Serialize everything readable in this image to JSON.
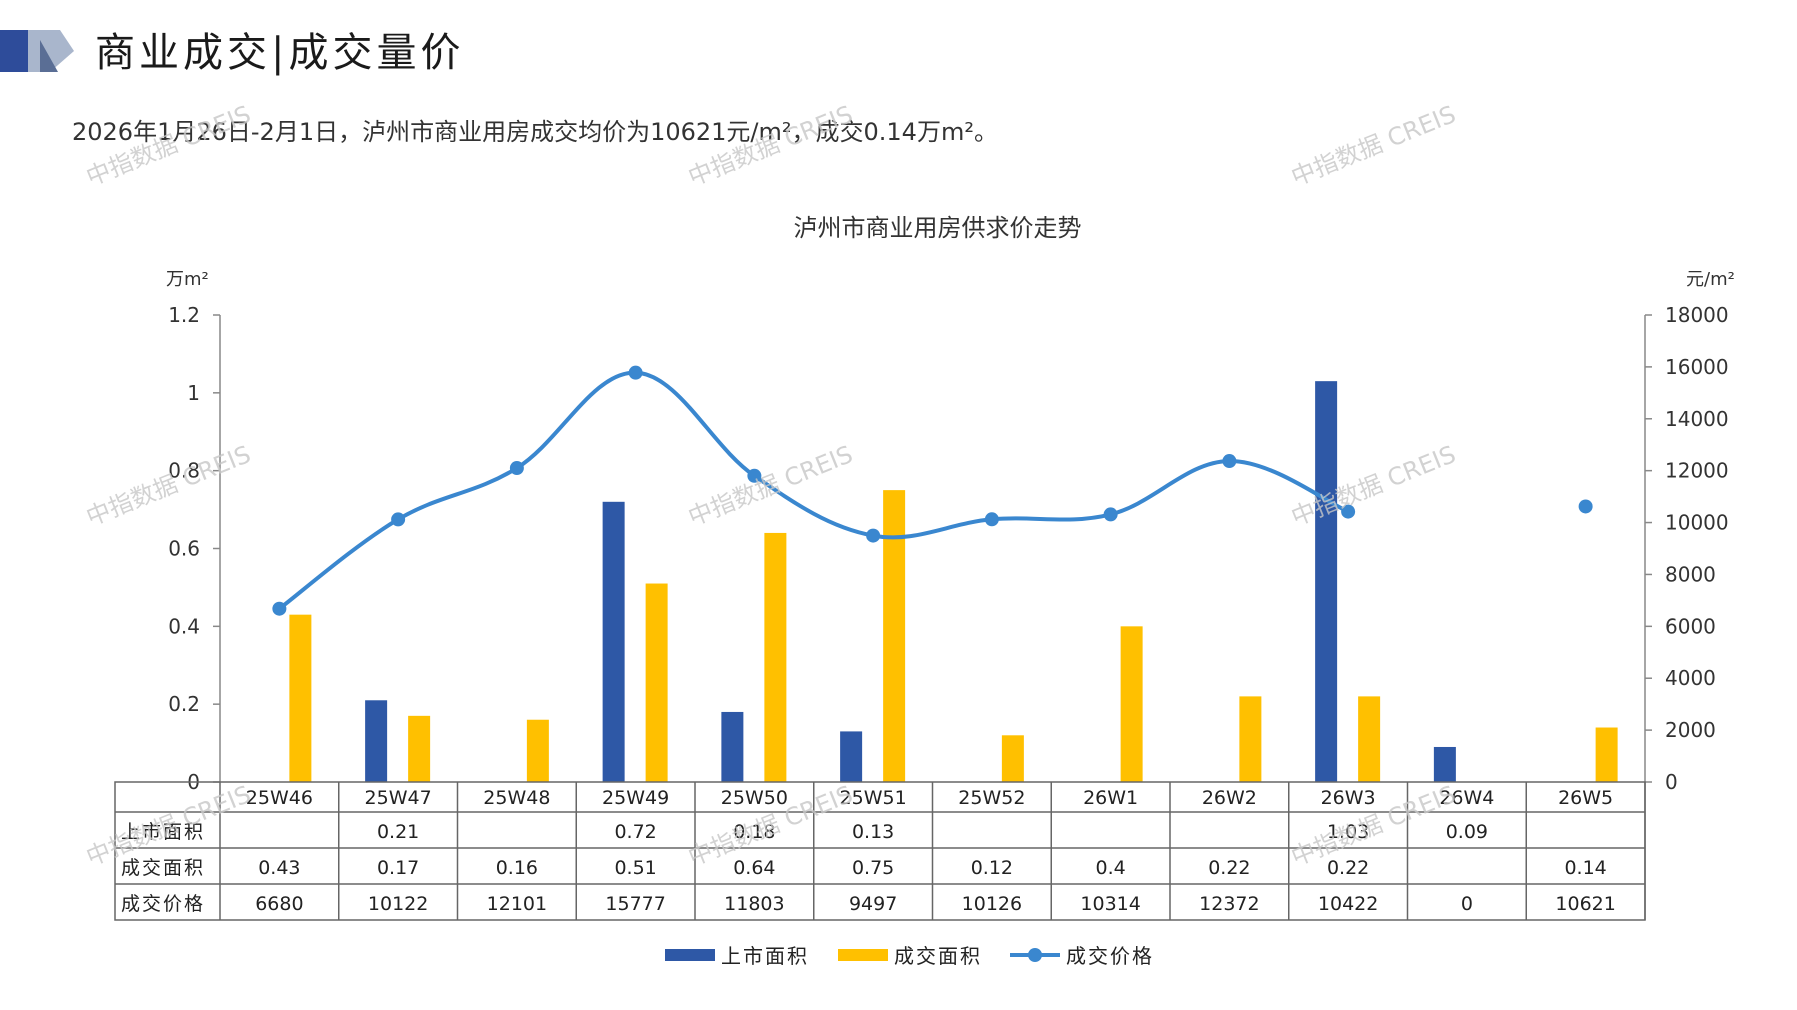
{
  "header": {
    "title": "商业成交|成交量价",
    "subtitle": "2026年1月26日-2月1日，泸州市商业用房成交均价为10621元/m²，成交0.14万m²。"
  },
  "watermark": "中指数据 CREIS",
  "colors": {
    "listed": "#2E58A6",
    "deal_area": "#FFC000",
    "price": "#3A87CF"
  },
  "chart_data": {
    "type": "bar",
    "title": "泸州市商业用房供求价走势",
    "y_left_unit": "万m²",
    "y_right_unit": "元/m²",
    "y_left_ticks": [
      "0",
      "0.2",
      "0.4",
      "0.6",
      "0.8",
      "1",
      "1.2"
    ],
    "y_right_ticks": [
      "0",
      "2000",
      "4000",
      "6000",
      "8000",
      "10000",
      "12000",
      "14000",
      "16000",
      "18000"
    ],
    "ylim_left": [
      0,
      1.2
    ],
    "ylim_right": [
      0,
      18000
    ],
    "categories": [
      "25W46",
      "25W47",
      "25W48",
      "25W49",
      "25W50",
      "25W51",
      "25W52",
      "26W1",
      "26W2",
      "26W3",
      "26W4",
      "26W5"
    ],
    "series": [
      {
        "name": "上市面积",
        "type": "bar",
        "axis": "left",
        "values": [
          null,
          0.21,
          null,
          0.72,
          0.18,
          0.13,
          null,
          null,
          null,
          1.03,
          0.09,
          null
        ],
        "labels": [
          "",
          "0.21",
          "",
          "0.72",
          "0.18",
          "0.13",
          "",
          "",
          "",
          "1.03",
          "0.09",
          ""
        ]
      },
      {
        "name": "成交面积",
        "type": "bar",
        "axis": "left",
        "values": [
          0.43,
          0.17,
          0.16,
          0.51,
          0.64,
          0.75,
          0.12,
          0.4,
          0.22,
          0.22,
          null,
          0.14
        ],
        "labels": [
          "0.43",
          "0.17",
          "0.16",
          "0.51",
          "0.64",
          "0.75",
          "0.12",
          "0.4",
          "0.22",
          "0.22",
          "",
          "0.14"
        ]
      },
      {
        "name": "成交价格",
        "type": "line",
        "axis": "right",
        "values": [
          6680,
          10122,
          12101,
          15777,
          11803,
          9497,
          10126,
          10314,
          12372,
          10422,
          0,
          10621
        ],
        "labels": [
          "6680",
          "10122",
          "12101",
          "15777",
          "11803",
          "9497",
          "10126",
          "10314",
          "12372",
          "10422",
          "0",
          "10621"
        ]
      }
    ],
    "legend_position": "bottom"
  }
}
